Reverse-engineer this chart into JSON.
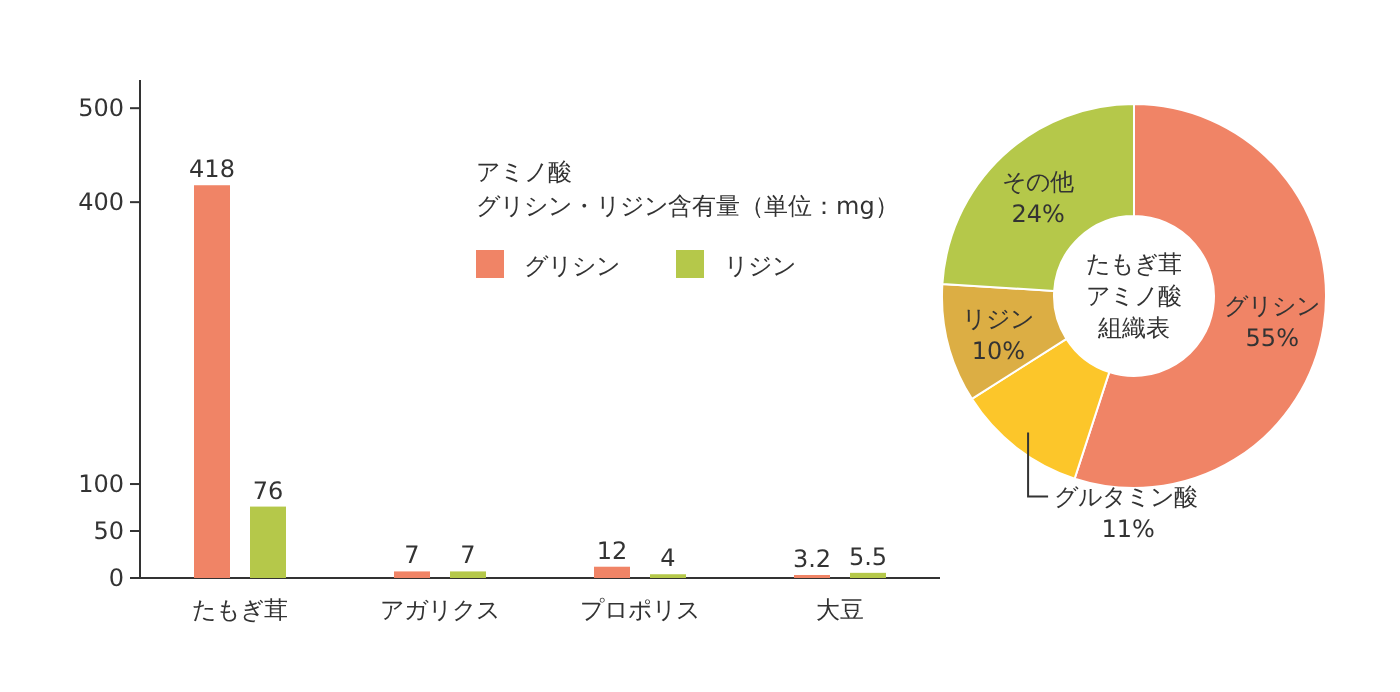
{
  "chart_data": [
    {
      "type": "bar",
      "categories": [
        "たもぎ茸",
        "アガリクス",
        "プロポリス",
        "大豆"
      ],
      "series": [
        {
          "name": "グリシン",
          "color": "#f08466",
          "values": [
            418,
            7,
            12,
            3.2
          ]
        },
        {
          "name": "リジン",
          "color": "#b5c84a",
          "values": [
            76,
            7,
            4,
            5.5
          ]
        }
      ],
      "legend_title": "アミノ酸グリシン・リジン含有量（単位：mg）",
      "legend": "top right",
      "ylim": [
        0,
        530
      ],
      "yticks": [
        0,
        50,
        100,
        400,
        500
      ],
      "data_labels": true
    },
    {
      "type": "donut",
      "title": "たもぎ茸アミノ酸組織表",
      "categories": [
        "グリシン",
        "グルタミン酸",
        "リジン",
        "その他"
      ],
      "values": [
        55,
        11,
        10,
        24
      ],
      "value_labels": [
        "55%",
        "11%",
        "10%",
        "24%"
      ],
      "colors": [
        "#f08466",
        "#fcc62a",
        "#dcae44",
        "#b5c84a"
      ]
    }
  ]
}
